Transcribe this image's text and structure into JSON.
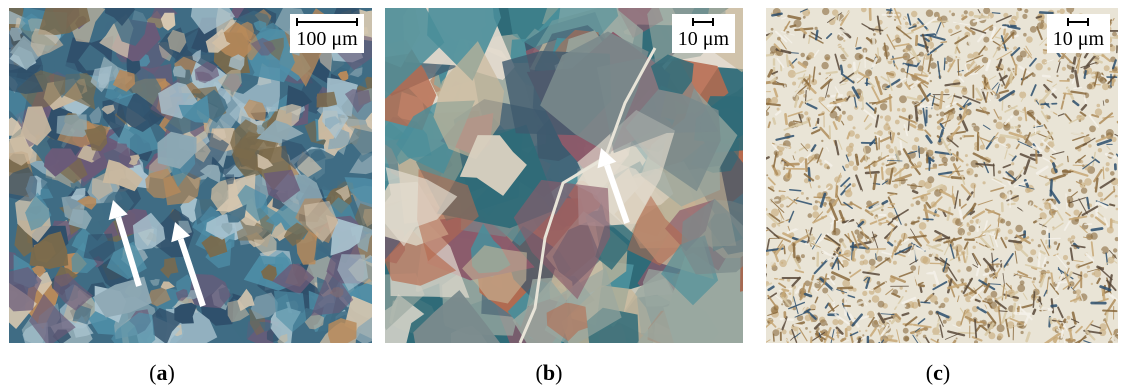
{
  "panels": [
    {
      "id": "a",
      "caption_letter": "a",
      "scale_label": "100 μm"
    },
    {
      "id": "b",
      "caption_letter": "b",
      "scale_label": "10 μm"
    },
    {
      "id": "c",
      "caption_letter": "c",
      "scale_label": "10 μm"
    }
  ],
  "colors": {
    "palette_a": [
      "#3f6c84",
      "#8ea9b4",
      "#b98a5a",
      "#6a5a78",
      "#c9b9a0",
      "#4f8fa8",
      "#7b6a4b",
      "#a9c3cf",
      "#2f4f6a",
      "#d6c7b0"
    ],
    "palette_b": [
      "#2f6b78",
      "#4a8e9a",
      "#c8b79a",
      "#b66a4e",
      "#7a8a8c",
      "#d9d0c0",
      "#3e5a6e",
      "#9aa8a0",
      "#8c5a6a",
      "#e3dccf"
    ],
    "palette_c": [
      "#e9e4d6",
      "#c7a876",
      "#8a6a3e",
      "#2d4f6e",
      "#f5f2ea",
      "#b08e5c",
      "#5a4a3a",
      "#d8c9a6"
    ]
  }
}
